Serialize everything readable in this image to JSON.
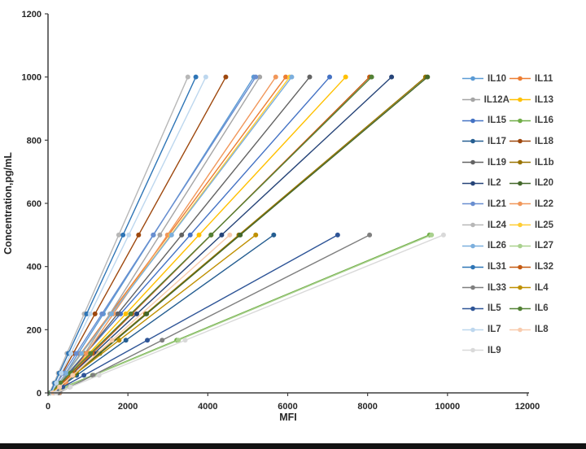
{
  "figure": {
    "background_color": "#ffffff",
    "footer_bar_color": "#121212"
  },
  "chart_data": {
    "type": "line",
    "title": "",
    "xlabel": "MFI",
    "ylabel": "Concentration,pg/mL",
    "xlim": [
      0,
      12000
    ],
    "ylim": [
      0,
      1200
    ],
    "x_ticks": [
      0,
      2000,
      4000,
      6000,
      8000,
      10000,
      12000
    ],
    "y_ticks": [
      0,
      200,
      400,
      600,
      800,
      1000,
      1200
    ],
    "grid": false,
    "legend_position": "right",
    "legend_columns": 2,
    "axis_color": "#3f3f3f",
    "tick_label_color": "#262626",
    "series_model": "linear standard curves: each series runs from a blank point (blank_mfi, 0) to its top standard (max_mfi, max_conc), with markers at serial-dilution concentrations",
    "series": [
      {
        "name": "IL10",
        "color": "#5B9BD5",
        "max_mfi": 5150,
        "max_conc": 1000,
        "blank_mfi": 130,
        "dilution_factor": 2
      },
      {
        "name": "IL11",
        "color": "#ED7D31",
        "max_mfi": 5950,
        "max_conc": 1000,
        "blank_mfi": 90,
        "dilution_factor": 2
      },
      {
        "name": "IL12A",
        "color": "#A5A5A5",
        "max_mfi": 5300,
        "max_conc": 1000,
        "blank_mfi": 300,
        "dilution_factor": 2
      },
      {
        "name": "IL13",
        "color": "#FFC000",
        "max_mfi": 7450,
        "max_conc": 1000,
        "blank_mfi": 110,
        "dilution_factor": 2
      },
      {
        "name": "IL15",
        "color": "#4472C4",
        "max_mfi": 7050,
        "max_conc": 1000,
        "blank_mfi": 70,
        "dilution_factor": 2
      },
      {
        "name": "IL16",
        "color": "#70AD47",
        "max_mfi": 9550,
        "max_conc": 500,
        "blank_mfi": 60,
        "dilution_factor": 3
      },
      {
        "name": "IL17",
        "color": "#255E91",
        "max_mfi": 5650,
        "max_conc": 500,
        "blank_mfi": 100,
        "dilution_factor": 3
      },
      {
        "name": "IL18",
        "color": "#9E480E",
        "max_mfi": 4450,
        "max_conc": 1000,
        "blank_mfi": 85,
        "dilution_factor": 2
      },
      {
        "name": "IL19",
        "color": "#636363",
        "max_mfi": 6550,
        "max_conc": 1000,
        "blank_mfi": 140,
        "dilution_factor": 2
      },
      {
        "name": "IL1b",
        "color": "#997300",
        "max_mfi": 9450,
        "max_conc": 1000,
        "blank_mfi": 105,
        "dilution_factor": 2
      },
      {
        "name": "IL2",
        "color": "#264478",
        "max_mfi": 8600,
        "max_conc": 1000,
        "blank_mfi": 95,
        "dilution_factor": 2
      },
      {
        "name": "IL20",
        "color": "#43682B",
        "max_mfi": 9500,
        "max_conc": 1000,
        "blank_mfi": 125,
        "dilution_factor": 2
      },
      {
        "name": "IL21",
        "color": "#698ED0",
        "max_mfi": 5200,
        "max_conc": 1000,
        "blank_mfi": 65,
        "dilution_factor": 2
      },
      {
        "name": "IL22",
        "color": "#F1975A",
        "max_mfi": 5700,
        "max_conc": 1000,
        "blank_mfi": 280,
        "dilution_factor": 2
      },
      {
        "name": "IL24",
        "color": "#B7B7B7",
        "max_mfi": 3500,
        "max_conc": 1000,
        "blank_mfi": 40,
        "dilution_factor": 2
      },
      {
        "name": "IL25",
        "color": "#FFCD33",
        "max_mfi": 6050,
        "max_conc": 1000,
        "blank_mfi": 100,
        "dilution_factor": 2
      },
      {
        "name": "IL26",
        "color": "#7CAFDD",
        "max_mfi": 6100,
        "max_conc": 1000,
        "blank_mfi": 85,
        "dilution_factor": 2
      },
      {
        "name": "IL27",
        "color": "#A9D18E",
        "max_mfi": 9600,
        "max_conc": 500,
        "blank_mfi": 95,
        "dilution_factor": 3
      },
      {
        "name": "IL31",
        "color": "#2E75B6",
        "max_mfi": 3700,
        "max_conc": 1000,
        "blank_mfi": 55,
        "dilution_factor": 2
      },
      {
        "name": "IL32",
        "color": "#C55A11",
        "max_mfi": 8050,
        "max_conc": 1000,
        "blank_mfi": 115,
        "dilution_factor": 2
      },
      {
        "name": "IL33",
        "color": "#7F7F7F",
        "max_mfi": 8050,
        "max_conc": 500,
        "blank_mfi": 260,
        "dilution_factor": 3
      },
      {
        "name": "IL4",
        "color": "#BF9000",
        "max_mfi": 5200,
        "max_conc": 500,
        "blank_mfi": 70,
        "dilution_factor": 3
      },
      {
        "name": "IL5",
        "color": "#2F5597",
        "max_mfi": 7250,
        "max_conc": 500,
        "blank_mfi": 105,
        "dilution_factor": 3
      },
      {
        "name": "IL6",
        "color": "#538135",
        "max_mfi": 8100,
        "max_conc": 1000,
        "blank_mfi": 60,
        "dilution_factor": 2
      },
      {
        "name": "IL7",
        "color": "#BDD7EE",
        "max_mfi": 3950,
        "max_conc": 1000,
        "blank_mfi": 90,
        "dilution_factor": 2
      },
      {
        "name": "IL8",
        "color": "#F8CBAD",
        "max_mfi": 4550,
        "max_conc": 500,
        "blank_mfi": 125,
        "dilution_factor": 3
      },
      {
        "name": "IL9",
        "color": "#D9D9D9",
        "max_mfi": 9900,
        "max_conc": 500,
        "blank_mfi": 200,
        "dilution_factor": 3
      }
    ]
  }
}
